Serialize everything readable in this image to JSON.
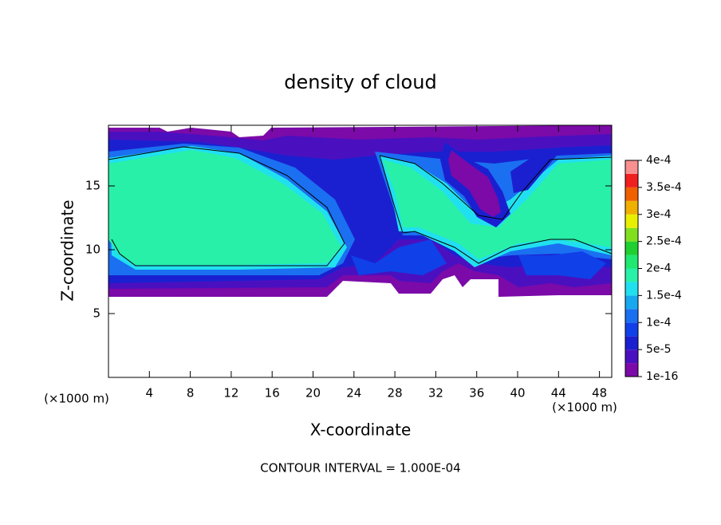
{
  "chart_data": {
    "type": "contour",
    "title": "density of cloud",
    "x_label": "X-coordinate",
    "y_label": "Z-coordinate",
    "x_unit": "(×1000 m)",
    "y_unit": "(×1000 m)",
    "footer": "CONTOUR INTERVAL = 1.000E-04",
    "xlim": [
      0,
      49.2
    ],
    "ylim": [
      0,
      19.75
    ],
    "xticks": [
      4,
      8,
      12,
      16,
      20,
      24,
      28,
      32,
      36,
      40,
      44,
      48
    ],
    "yticks": [
      5,
      10,
      15
    ],
    "colorbar": {
      "ticks": [
        {
          "value": 1e-16,
          "label": "1e-16"
        },
        {
          "value": 5e-05,
          "label": "5e-5"
        },
        {
          "value": 0.0001,
          "label": "1e-4"
        },
        {
          "value": 0.00015,
          "label": "1.5e-4"
        },
        {
          "value": 0.0002,
          "label": "2e-4"
        },
        {
          "value": 0.00025,
          "label": "2.5e-4"
        },
        {
          "value": 0.0003,
          "label": "3e-4"
        },
        {
          "value": 0.00035,
          "label": "3.5e-4"
        },
        {
          "value": 0.0004,
          "label": "4e-4"
        }
      ],
      "colors": [
        "#7b0aa8",
        "#4a10c0",
        "#1a20d0",
        "#1040e8",
        "#1a70f0",
        "#18a8f0",
        "#20e0f0",
        "#28f0a8",
        "#20e870",
        "#20d030",
        "#80e020",
        "#e8f000",
        "#f0b000",
        "#f06000",
        "#f02020",
        "#f89090"
      ]
    },
    "contour_color": "#000000"
  }
}
